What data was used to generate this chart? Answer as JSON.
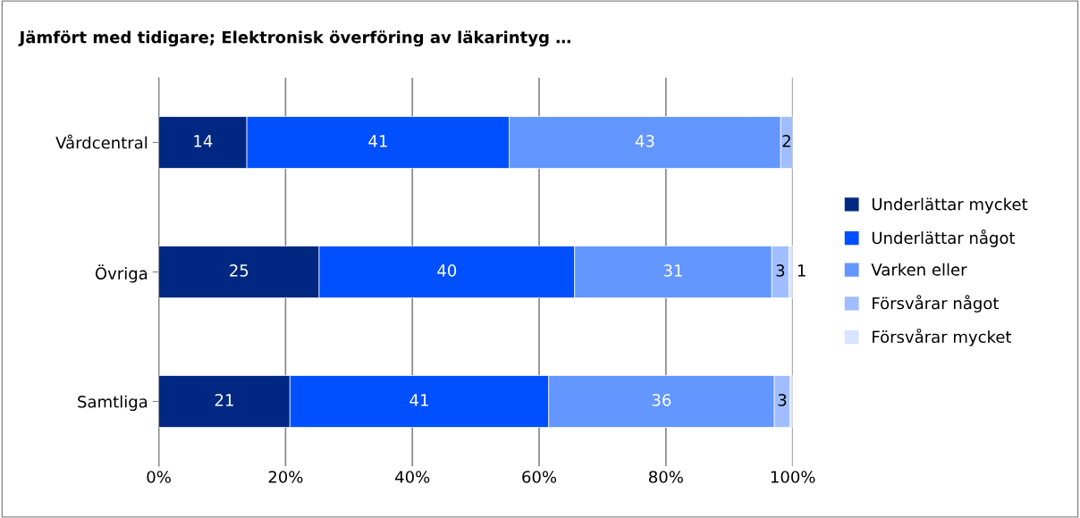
{
  "chart_data": {
    "type": "bar",
    "orientation": "horizontal",
    "stacked": true,
    "title": "Jämfört med tidigare; Elektronisk överföring av läkarintyg …",
    "categories": [
      "Vårdcentral",
      "Övriga",
      "Samtliga"
    ],
    "series": [
      {
        "name": "Underlättar mycket",
        "color": "#002882",
        "values": [
          13.9,
          25.3,
          20.7
        ],
        "value_labels": [
          "14",
          "25",
          "21"
        ]
      },
      {
        "name": "Underlättar något",
        "color": "#0050ff",
        "values": [
          41.4,
          40.3,
          40.8
        ],
        "value_labels": [
          "41",
          "40",
          "41"
        ]
      },
      {
        "name": "Varken eller",
        "color": "#6496ff",
        "values": [
          42.8,
          31.1,
          35.6
        ],
        "value_labels": [
          "43",
          "31",
          "36"
        ]
      },
      {
        "name": "Försvårar något",
        "color": "#a0beff",
        "values": [
          1.9,
          2.7,
          2.5
        ],
        "value_labels": [
          "2",
          "3",
          "3"
        ]
      },
      {
        "name": "Försvårar mycket",
        "color": "#d7e4ff",
        "values": [
          null,
          0.6,
          0.4
        ],
        "value_labels": [
          null,
          "1",
          null
        ]
      }
    ],
    "xlim": [
      0,
      100
    ],
    "xticks": [
      {
        "value": 0,
        "label": "0%"
      },
      {
        "value": 20,
        "label": "20%"
      },
      {
        "value": 40,
        "label": "40%"
      },
      {
        "value": 60,
        "label": "60%"
      },
      {
        "value": 80,
        "label": "80%"
      },
      {
        "value": 100,
        "label": "100%"
      }
    ],
    "grid": "x",
    "legend": "right"
  }
}
